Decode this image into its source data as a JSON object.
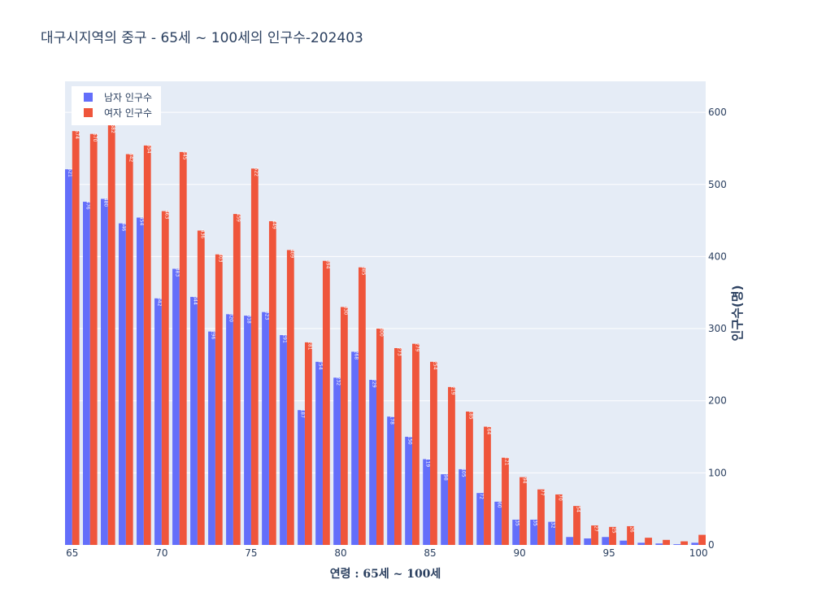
{
  "title": "대구시지역의 중구 - 65세 ~ 100세의 인구수-202403",
  "colors": {
    "male": "#636efa",
    "female": "#ef553b",
    "plot_bg": "#e5ecf6",
    "grid": "#ffffff",
    "text": "#2a3f5f"
  },
  "chart_data": {
    "type": "bar",
    "title": "대구시지역의 중구 - 65세 ~ 100세의 인구수-202403",
    "xlabel": "연령 : 65세 ~ 100세",
    "ylabel": "인구수(명)",
    "xlim": [
      64.6,
      100.4
    ],
    "ylim": [
      0,
      643
    ],
    "x_ticks": [
      65,
      70,
      75,
      80,
      85,
      90,
      95,
      100
    ],
    "y_ticks": [
      0,
      100,
      200,
      300,
      400,
      500,
      600
    ],
    "y_axis_side": "right",
    "legend_position": "top-left",
    "grid": true,
    "x": [
      65,
      66,
      67,
      68,
      69,
      70,
      71,
      72,
      73,
      74,
      75,
      76,
      77,
      78,
      79,
      80,
      81,
      82,
      83,
      84,
      85,
      86,
      87,
      88,
      89,
      90,
      91,
      92,
      93,
      94,
      95,
      96,
      97,
      98,
      99,
      100
    ],
    "series": [
      {
        "name": "남자 인구수",
        "color": "#636efa",
        "values": [
          521,
          476,
          480,
          446,
          454,
          342,
          383,
          344,
          296,
          320,
          318,
          323,
          291,
          187,
          254,
          232,
          268,
          229,
          178,
          150,
          119,
          98,
          105,
          72,
          60,
          35,
          35,
          32,
          11,
          9,
          11,
          6,
          3,
          2,
          1,
          3
        ]
      },
      {
        "name": "여자 인구수",
        "color": "#ef553b",
        "values": [
          574,
          570,
          582,
          542,
          554,
          463,
          545,
          436,
          403,
          459,
          522,
          449,
          409,
          281,
          394,
          330,
          385,
          300,
          273,
          279,
          254,
          219,
          185,
          164,
          121,
          94,
          77,
          70,
          54,
          27,
          25,
          26,
          10,
          7,
          5,
          14
        ]
      }
    ]
  }
}
